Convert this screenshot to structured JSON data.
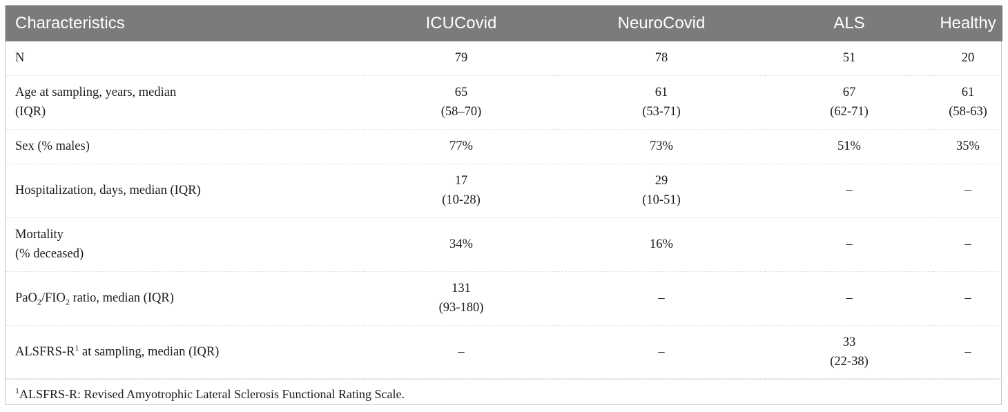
{
  "table": {
    "headers": [
      "Characteristics",
      "ICUCovid",
      "NeuroCovid",
      "ALS",
      "Healthy"
    ],
    "rows": [
      {
        "label": [
          "N"
        ],
        "cells": [
          [
            "79"
          ],
          [
            "78"
          ],
          [
            "51"
          ],
          [
            "20"
          ]
        ]
      },
      {
        "label": [
          "Age at sampling, years, median",
          "(IQR)"
        ],
        "cells": [
          [
            "65",
            "(58–70)"
          ],
          [
            "61",
            "(53-71)"
          ],
          [
            "67",
            "(62-71)"
          ],
          [
            "61",
            "(58-63)"
          ]
        ]
      },
      {
        "label": [
          "Sex (% males)"
        ],
        "cells": [
          [
            "77%"
          ],
          [
            "73%"
          ],
          [
            "51%"
          ],
          [
            "35%"
          ]
        ]
      },
      {
        "label": [
          "Hospitalization, days, median (IQR)"
        ],
        "cells": [
          [
            "17",
            "(10-28)"
          ],
          [
            "29",
            "(10-51)"
          ],
          [
            "–"
          ],
          [
            "–"
          ]
        ]
      },
      {
        "label": [
          "Mortality",
          "(% deceased)"
        ],
        "cells": [
          [
            "34%"
          ],
          [
            "16%"
          ],
          [
            "–"
          ],
          [
            "–"
          ]
        ]
      },
      {
        "label_parts": [
          "PaO",
          "2",
          "/FIO",
          "2",
          " ratio, median (IQR)"
        ],
        "cells": [
          [
            "131",
            "(93-180)"
          ],
          [
            "–"
          ],
          [
            "–"
          ],
          [
            "–"
          ]
        ]
      },
      {
        "label_parts": [
          "ALSFRS-R",
          "1",
          " at sampling, median (IQR)"
        ],
        "cells": [
          [
            "–"
          ],
          [
            "–"
          ],
          [
            "33",
            "(22-38)"
          ],
          [
            "–"
          ]
        ]
      }
    ]
  },
  "footnote": {
    "marker": "1",
    "text": "ALSFRS-R: Revised Amyotrophic Lateral Sclerosis Functional Rating Scale."
  }
}
